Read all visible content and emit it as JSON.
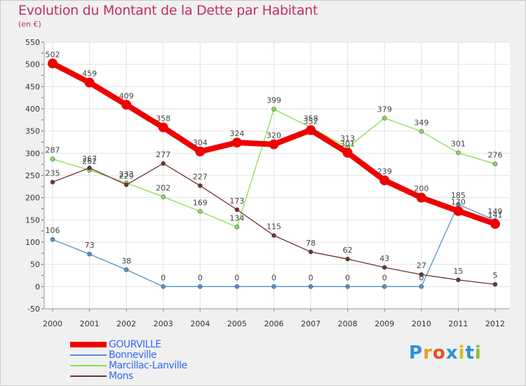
{
  "title": "Evolution du Montant de la Dette par Habitant",
  "unit": "(en €)",
  "logo": {
    "text": "Proxiti",
    "letters": [
      "P",
      "r",
      "o",
      "x",
      "i",
      "t",
      "i"
    ],
    "colors": [
      "#2e8fd8",
      "#e8a020",
      "#e85020",
      "#2e8fd8",
      "#d8c020",
      "#2e8fd8",
      "#80c040"
    ]
  },
  "chart_data": {
    "type": "line",
    "ylim": [
      -50,
      550
    ],
    "yticks": [
      -50,
      0,
      50,
      100,
      150,
      200,
      250,
      300,
      350,
      400,
      450,
      500,
      550
    ],
    "x": [
      "2000",
      "2001",
      "2002",
      "2003",
      "2004",
      "2005",
      "2006",
      "2007",
      "2008",
      "2009",
      "2010",
      "2011",
      "2012"
    ],
    "grid": true,
    "legend_position": "bottom-left",
    "series": [
      {
        "name": "Bonneville",
        "color": "#5090d0",
        "labelColor": "#444444",
        "values": [
          106,
          73,
          38,
          0,
          0,
          0,
          0,
          0,
          0,
          0,
          0,
          185,
          149
        ],
        "labels": [
          "106",
          "73",
          "38",
          "0",
          "0",
          "0",
          "0",
          "0",
          "0",
          "0",
          "0",
          "185",
          "149"
        ]
      },
      {
        "name": "Marcillac-Lanville",
        "color": "#88dd55",
        "labelColor": "#444444",
        "values": [
          287,
          262,
          233,
          202,
          169,
          134,
          399,
          358,
          313,
          379,
          349,
          301,
          276
        ],
        "labels": [
          "287",
          "262",
          "233",
          "202",
          "169",
          "134",
          "399",
          "358",
          "313",
          "379",
          "349",
          "301",
          "276"
        ]
      },
      {
        "name": "Mons",
        "color": "#733030",
        "labelColor": "#444444",
        "values": [
          235,
          267,
          229,
          277,
          227,
          173,
          115,
          78,
          62,
          43,
          27,
          15,
          5
        ],
        "labels": [
          "235",
          "267",
          "229",
          "277",
          "227",
          "173",
          "115",
          "78",
          "62",
          "43",
          "27",
          "15",
          "5"
        ]
      },
      {
        "name": "GOURVILLE",
        "color": "#ee0000",
        "labelColor": "#444444",
        "bold": true,
        "values": [
          502,
          459,
          409,
          358,
          304,
          324,
          320,
          352,
          301,
          239,
          200,
          170,
          141
        ],
        "labels": [
          "502",
          "459",
          "409",
          "358",
          "304",
          "324",
          "320",
          "352",
          "301",
          "239",
          "200",
          "170",
          "141"
        ]
      }
    ],
    "legend": [
      {
        "name": "GOURVILLE",
        "color": "#ee0000",
        "labelColor": "#3366ff"
      },
      {
        "name": "Bonneville",
        "color": "#5090d0",
        "labelColor": "#3366ff"
      },
      {
        "name": "Marcillac-Lanville",
        "color": "#88dd55",
        "labelColor": "#3366ff"
      },
      {
        "name": "Mons",
        "color": "#733030",
        "labelColor": "#3366ff"
      }
    ]
  }
}
